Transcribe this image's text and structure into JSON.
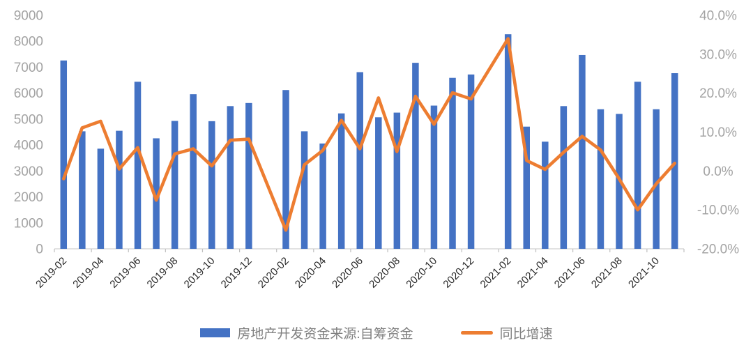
{
  "chart_data": {
    "type": "bar",
    "combo": "bar+line",
    "title": "",
    "grid": false,
    "legend_position": "bottom",
    "background": "#ffffff",
    "categories": [
      "2019-02",
      "2019-03",
      "2019-04",
      "2019-05",
      "2019-06",
      "2019-07",
      "2019-08",
      "2019-09",
      "2019-10",
      "2019-11",
      "2019-12",
      "2020-01",
      "2020-02",
      "2020-03",
      "2020-04",
      "2020-05",
      "2020-06",
      "2020-07",
      "2020-08",
      "2020-09",
      "2020-10",
      "2020-11",
      "2020-12",
      "2021-01",
      "2021-02",
      "2021-03",
      "2021-04",
      "2021-05",
      "2021-06",
      "2021-07",
      "2021-08",
      "2021-09",
      "2021-10",
      "2021-11"
    ],
    "series": [
      {
        "name": "房地产开发资金来源:自筹资金",
        "type": "bar",
        "y_axis": "left",
        "color": "#4472C4",
        "values": [
          7260,
          4530,
          3860,
          4550,
          6440,
          4260,
          4930,
          5960,
          4920,
          5500,
          5620,
          null,
          6120,
          4530,
          4060,
          5220,
          6810,
          5070,
          5250,
          7170,
          5520,
          6590,
          6720,
          null,
          8270,
          4710,
          4130,
          5500,
          7470,
          5380,
          5200,
          6440,
          5380,
          6770
        ]
      },
      {
        "name": "同比增速",
        "type": "line",
        "y_axis": "right",
        "color": "#ED7D31",
        "values": [
          -2.0,
          11.1,
          12.8,
          0.5,
          6.0,
          -7.5,
          4.4,
          5.7,
          1.3,
          7.9,
          8.2,
          null,
          -15.2,
          1.6,
          5.3,
          13.0,
          5.7,
          18.8,
          5.0,
          19.2,
          12.0,
          20.1,
          18.5,
          null,
          34.0,
          2.7,
          0.4,
          4.8,
          8.9,
          5.4,
          -2.0,
          -10.0,
          -3.3,
          2.0
        ]
      }
    ],
    "left_axis": {
      "min": 0,
      "max": 9000,
      "step": 1000,
      "tick_labels": [
        "0",
        "1000",
        "2000",
        "3000",
        "4000",
        "5000",
        "6000",
        "7000",
        "8000",
        "9000"
      ]
    },
    "right_axis": {
      "min": -20,
      "max": 40,
      "step": 10,
      "tick_labels": [
        "-20.0%",
        "-10.0%",
        "0.0%",
        "10.0%",
        "20.0%",
        "30.0%",
        "40.0%"
      ]
    },
    "x_axis": {
      "label_rotation_deg": -45,
      "label_every": 2,
      "tick_labels_shown": [
        "2019-02",
        "2019-04",
        "2019-06",
        "2019-08",
        "2019-10",
        "2019-12",
        "2020-02",
        "2020-04",
        "2020-06",
        "2020-08",
        "2020-10",
        "2020-12",
        "2021-02",
        "2021-04",
        "2021-06",
        "2021-08",
        "2021-10"
      ]
    }
  },
  "colors": {
    "bar": "#4472C4",
    "line": "#ED7D31",
    "axis_line": "#D9D9D9",
    "tick_mark": "#BFBFBF",
    "y_label": "#A3A3A3",
    "x_label": "#262626",
    "legend_text": "#808080"
  }
}
